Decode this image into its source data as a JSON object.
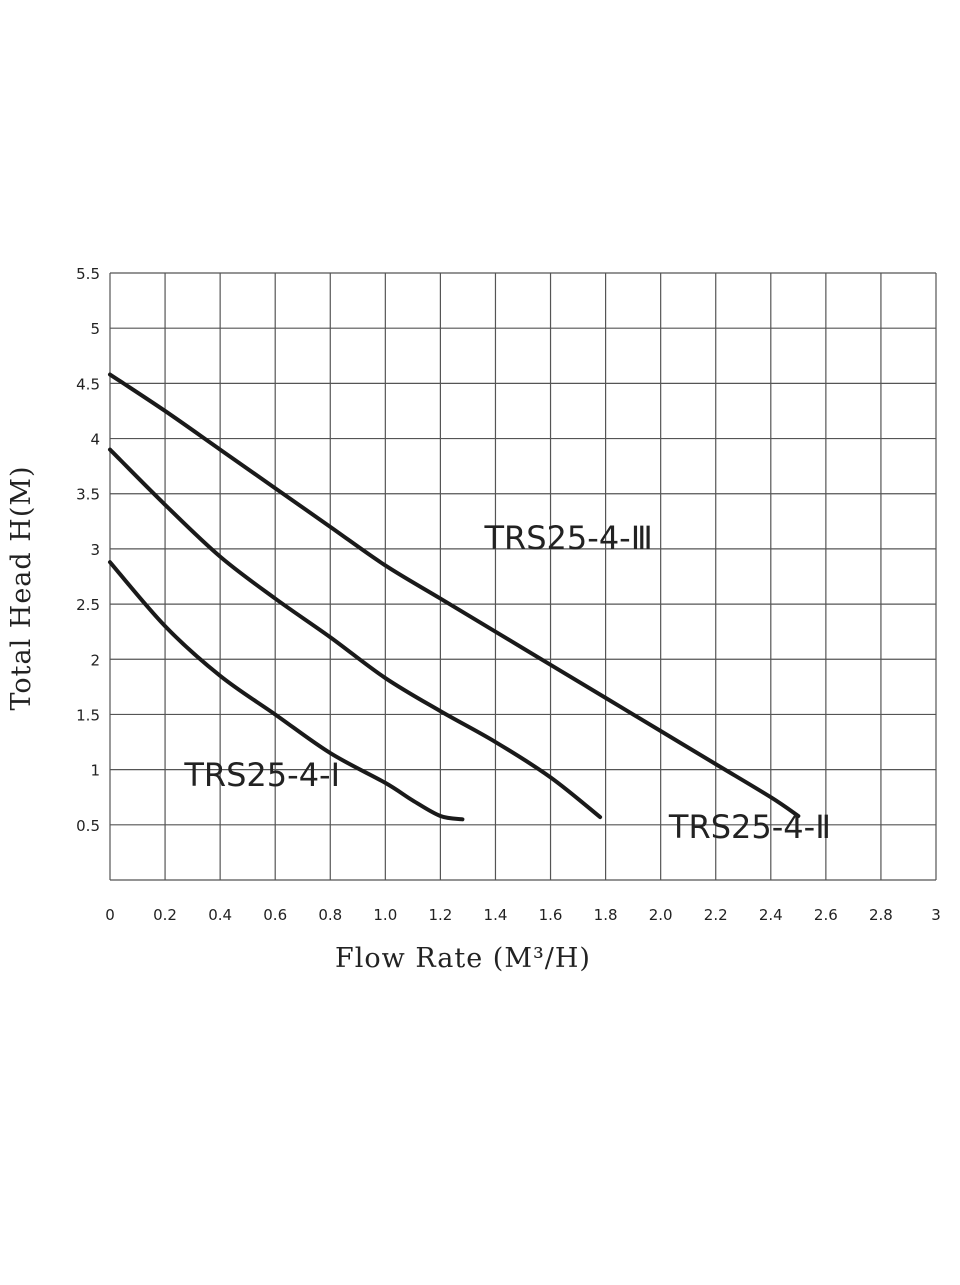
{
  "chart_data": {
    "type": "line",
    "xlabel": "Flow Rate (M³/H)",
    "ylabel": "Total Head H(M)",
    "xlim": [
      0,
      3
    ],
    "ylim": [
      0,
      5.5
    ],
    "x_ticks": [
      "0",
      "0.2",
      "0.4",
      "0.6",
      "0.8",
      "1.0",
      "1.2",
      "1.4",
      "1.6",
      "1.8",
      "2.0",
      "2.2",
      "2.4",
      "2.6",
      "2.8",
      "3"
    ],
    "y_ticks": [
      "0.5",
      "1",
      "1.5",
      "2",
      "2.5",
      "3",
      "3.5",
      "4",
      "4.5",
      "5",
      "5.5"
    ],
    "grid": true,
    "legend": "none",
    "series": [
      {
        "name": "TRS25-4-Ⅰ",
        "label_at": [
          0.27,
          0.85
        ],
        "points": [
          [
            0,
            2.88
          ],
          [
            0.2,
            2.3
          ],
          [
            0.4,
            1.85
          ],
          [
            0.6,
            1.5
          ],
          [
            0.8,
            1.15
          ],
          [
            1.0,
            0.88
          ],
          [
            1.1,
            0.72
          ],
          [
            1.2,
            0.58
          ],
          [
            1.28,
            0.55
          ]
        ]
      },
      {
        "name": "TRS25-4-Ⅱ",
        "label_at": [
          2.03,
          0.38
        ],
        "points": [
          [
            0,
            3.9
          ],
          [
            0.2,
            3.4
          ],
          [
            0.4,
            2.93
          ],
          [
            0.6,
            2.55
          ],
          [
            0.8,
            2.2
          ],
          [
            1.0,
            1.83
          ],
          [
            1.2,
            1.53
          ],
          [
            1.4,
            1.25
          ],
          [
            1.6,
            0.93
          ],
          [
            1.78,
            0.57
          ]
        ]
      },
      {
        "name": "TRS25-4-Ⅲ",
        "label_at": [
          1.36,
          3.0
        ],
        "points": [
          [
            0,
            4.58
          ],
          [
            0.2,
            4.25
          ],
          [
            0.4,
            3.9
          ],
          [
            0.6,
            3.55
          ],
          [
            0.8,
            3.2
          ],
          [
            1.0,
            2.85
          ],
          [
            1.2,
            2.55
          ],
          [
            1.4,
            2.25
          ],
          [
            1.6,
            1.95
          ],
          [
            1.8,
            1.65
          ],
          [
            2.0,
            1.35
          ],
          [
            2.2,
            1.05
          ],
          [
            2.4,
            0.75
          ],
          [
            2.5,
            0.58
          ]
        ]
      }
    ]
  }
}
